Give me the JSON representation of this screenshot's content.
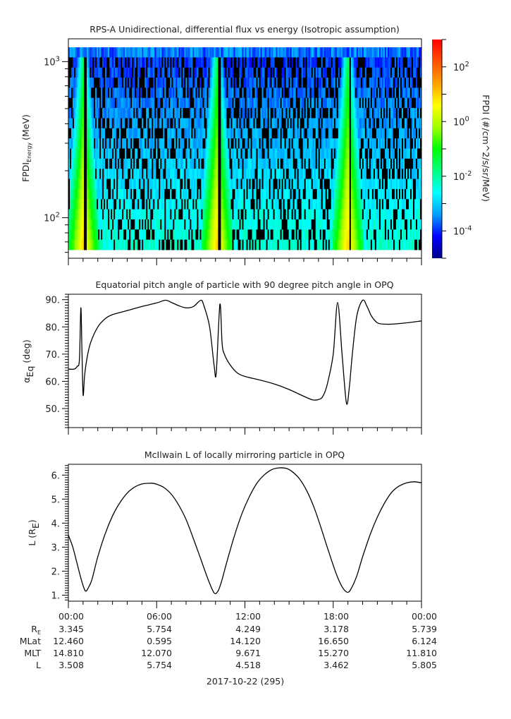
{
  "chart_data": [
    {
      "type": "heatmap",
      "title": "RPS-A Unidirectional, differential flux vs energy (Isotropic assumption)",
      "ylabel_main": "FPDI",
      "ylabel_sub": "Energy",
      "ylabel_unit": "(MeV)",
      "yscale": "log",
      "ylim": [
        55,
        1400
      ],
      "yticks": [
        {
          "base": "10",
          "exp": "2",
          "value": 100
        },
        {
          "base": "10",
          "exp": "3",
          "value": 1000
        }
      ],
      "colorbar": {
        "label": "FPDI (#/cm^2/s/sr/MeV)",
        "scale": "log",
        "range_exp": [
          -5,
          3
        ],
        "ticks": [
          {
            "base": "10",
            "exp": "2",
            "value_exp": 2
          },
          {
            "base": "10",
            "exp": "0",
            "value_exp": 0
          },
          {
            "base": "10",
            "exp": "-2",
            "value_exp": -2
          },
          {
            "base": "10",
            "exp": "-4",
            "value_exp": -4
          }
        ],
        "colors": [
          "#00008b",
          "#0000ff",
          "#00a0ff",
          "#00ffff",
          "#00ff80",
          "#00ff00",
          "#a0ff00",
          "#ffff00",
          "#ffa000",
          "#ff5000",
          "#ff0000"
        ]
      },
      "description_bands": [
        {
          "center_hour": 1.0,
          "peak_exp": 1.0
        },
        {
          "center_hour": 10.1,
          "peak_exp": 1.0
        },
        {
          "center_hour": 19.0,
          "peak_exp": 1.0
        }
      ]
    },
    {
      "type": "line",
      "title": "Equatorial pitch angle of particle with 90 degree pitch angle in OPQ",
      "ylabel_main": "α",
      "ylabel_sub": "Eq",
      "ylabel_unit": "(deg)",
      "ylim": [
        43,
        92
      ],
      "yticks": [
        {
          "label": "90.",
          "value": 90
        },
        {
          "label": "80.",
          "value": 80
        },
        {
          "label": "70.",
          "value": 70
        },
        {
          "label": "60.",
          "value": 60
        },
        {
          "label": "50.",
          "value": 50
        }
      ],
      "x_hours": [
        0,
        0.4,
        0.6,
        0.75,
        0.85,
        0.92,
        1.0,
        1.1,
        1.25,
        1.5,
        2.0,
        2.5,
        3.0,
        4.0,
        5.0,
        6.0,
        6.6,
        7.0,
        7.5,
        8.0,
        8.5,
        9.0,
        9.2,
        9.6,
        9.9,
        10.05,
        10.3,
        10.45,
        10.6,
        11.0,
        11.5,
        12.0,
        13.0,
        14.0,
        15.0,
        16.0,
        16.6,
        17.0,
        17.3,
        17.6,
        18.0,
        18.3,
        18.6,
        18.9,
        19.1,
        19.3,
        19.6,
        20.0,
        20.3,
        20.6,
        21.0,
        21.5,
        22.0,
        23.0,
        24.0
      ],
      "y_deg": [
        64.5,
        64.5,
        65.5,
        68,
        87,
        72,
        55,
        62,
        68,
        74,
        80,
        83,
        84.5,
        86,
        87.5,
        88.8,
        89.8,
        89,
        87.8,
        87,
        87.5,
        89.8,
        88,
        80,
        66,
        63,
        88.3,
        74,
        70,
        66,
        63,
        61.8,
        60.5,
        59,
        57,
        54.5,
        53.2,
        53.3,
        54.5,
        59,
        70,
        89,
        70,
        52,
        58,
        70,
        84,
        89.8,
        87.5,
        84,
        81.5,
        81,
        81,
        81.5,
        82.2
      ]
    },
    {
      "type": "line",
      "title": "McIlwain L of locally mirroring particle in OPQ",
      "ylabel_main": "L (R",
      "ylabel_sub": "E",
      "ylabel_unit": ")",
      "ylim": [
        0.75,
        6.45
      ],
      "yticks": [
        {
          "label": "6.",
          "value": 6
        },
        {
          "label": "5.",
          "value": 5
        },
        {
          "label": "4.",
          "value": 4
        },
        {
          "label": "3.",
          "value": 3
        },
        {
          "label": "2.",
          "value": 2
        },
        {
          "label": "1.",
          "value": 1
        }
      ],
      "x_hours": [
        0,
        0.3,
        0.6,
        0.9,
        1.15,
        1.35,
        1.6,
        2.0,
        2.5,
        3.0,
        3.5,
        4.0,
        4.5,
        5.0,
        5.5,
        5.7,
        6.0,
        6.5,
        7.0,
        7.5,
        8.0,
        8.5,
        9.0,
        9.5,
        9.9,
        10.15,
        10.4,
        10.8,
        11.3,
        11.8,
        12.3,
        12.8,
        13.3,
        13.8,
        14.3,
        14.8,
        15.2,
        15.7,
        16.2,
        16.7,
        17.2,
        17.7,
        18.2,
        18.6,
        18.95,
        19.2,
        19.6,
        20.0,
        20.5,
        21.0,
        21.5,
        22.0,
        22.5,
        23.0,
        23.5,
        24.0
      ],
      "y_L": [
        3.5,
        3.0,
        2.3,
        1.6,
        1.18,
        1.3,
        1.65,
        2.6,
        3.55,
        4.3,
        4.85,
        5.25,
        5.5,
        5.63,
        5.66,
        5.66,
        5.62,
        5.48,
        5.2,
        4.75,
        4.15,
        3.35,
        2.5,
        1.65,
        1.1,
        1.15,
        1.55,
        2.45,
        3.5,
        4.4,
        5.1,
        5.65,
        6.0,
        6.22,
        6.3,
        6.28,
        6.15,
        5.85,
        5.35,
        4.65,
        3.75,
        2.8,
        1.9,
        1.35,
        1.12,
        1.25,
        1.8,
        2.6,
        3.5,
        4.25,
        4.85,
        5.3,
        5.55,
        5.68,
        5.72,
        5.68
      ]
    }
  ],
  "x_axis": {
    "tick_labels": [
      "00:00",
      "06:00",
      "12:00",
      "18:00",
      "00:00"
    ],
    "date_label": "2017-10-22 (295)"
  },
  "ephemeris": {
    "rows": [
      {
        "label_main": "R",
        "label_sub": "E",
        "values": [
          "3.345",
          "5.754",
          "4.249",
          "3.178",
          "5.739"
        ]
      },
      {
        "label_main": "MLat",
        "label_sub": "",
        "values": [
          "12.460",
          "0.595",
          "14.120",
          "16.650",
          "6.124"
        ]
      },
      {
        "label_main": "MLT",
        "label_sub": "",
        "values": [
          "14.810",
          "12.070",
          "9.671",
          "15.270",
          "11.810"
        ]
      },
      {
        "label_main": "L",
        "label_sub": "",
        "values": [
          "3.508",
          "5.754",
          "4.518",
          "3.462",
          "5.805"
        ]
      }
    ]
  }
}
